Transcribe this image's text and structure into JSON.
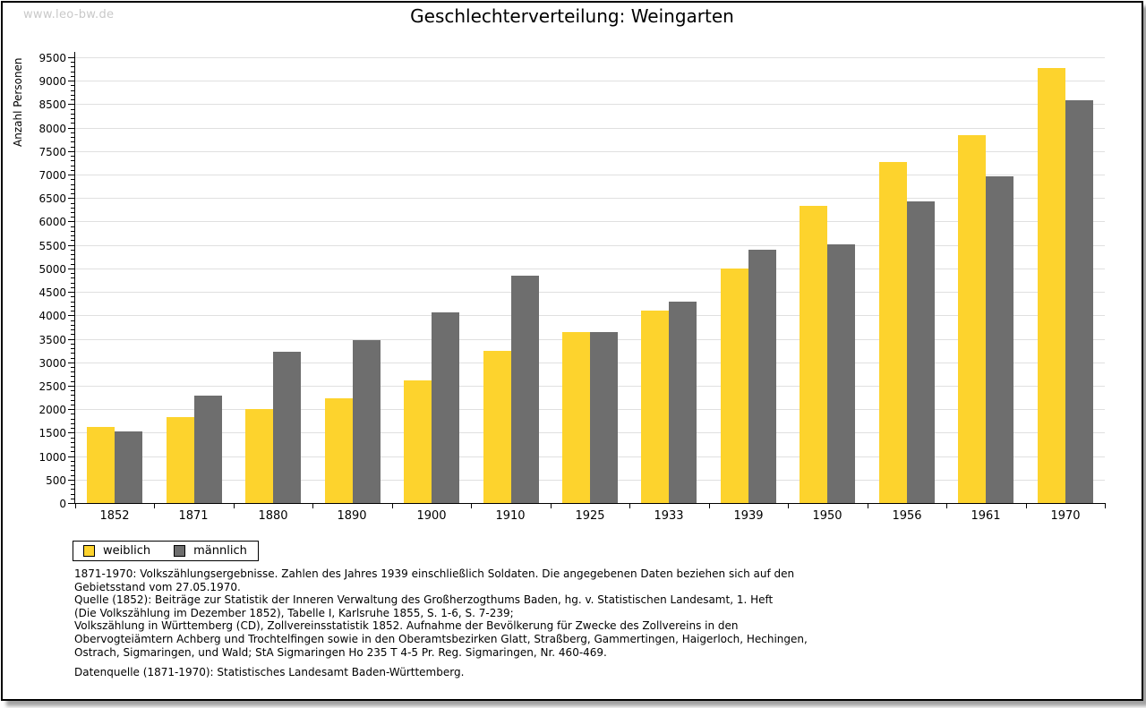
{
  "watermark": "www.leo-bw.de",
  "chart_data": {
    "type": "bar",
    "title": "Geschlechterverteilung: Weingarten",
    "xlabel": "",
    "ylabel": "Anzahl Personen",
    "categories": [
      "1852",
      "1871",
      "1880",
      "1890",
      "1900",
      "1910",
      "1925",
      "1933",
      "1939",
      "1950",
      "1956",
      "1961",
      "1970"
    ],
    "series": [
      {
        "name": "weiblich",
        "color": "#fdd32d",
        "values": [
          1620,
          1840,
          2010,
          2240,
          2610,
          3250,
          3650,
          4100,
          5000,
          6330,
          7270,
          7840,
          9280
        ]
      },
      {
        "name": "männlich",
        "color": "#6e6e6e",
        "values": [
          1520,
          2290,
          3220,
          3480,
          4060,
          4840,
          3640,
          4290,
          5390,
          5510,
          6430,
          6970,
          8590
        ]
      }
    ],
    "ylim": [
      0,
      9500
    ],
    "ytick_step": 500,
    "yminor_step": 100,
    "grid": true,
    "grid_color": "#e0e0e0",
    "axis_color": "#000000",
    "legend_position": "bottom-left"
  },
  "footnote_lines": [
    "1871-1970: Volkszählungsergebnisse. Zahlen des Jahres 1939 einschließlich Soldaten. Die angegebenen Daten beziehen sich auf den",
    "Gebietsstand vom 27.05.1970.",
    "Quelle (1852): Beiträge zur Statistik der Inneren Verwaltung des Großherzogthums Baden, hg. v. Statistischen Landesamt, 1. Heft",
    "(Die Volkszählung im Dezember 1852), Tabelle I, Karlsruhe 1855, S. 1-6, S. 7-239;",
    "Volkszählung in Württemberg (CD), Zollvereinsstatistik 1852. Aufnahme der Bevölkerung für Zwecke des Zollvereins in den",
    "Obervogteiämtern Achberg und Trochtelfingen sowie in den Oberamtsbezirken Glatt, Straßberg, Gammertingen, Haigerloch, Hechingen,",
    "Ostrach, Sigmaringen, und Wald; StA Sigmaringen Ho 235 T 4-5 Pr. Reg. Sigmaringen, Nr. 460-469."
  ],
  "datenquelle": "Datenquelle (1871-1970): Statistisches Landesamt Baden-Württemberg."
}
